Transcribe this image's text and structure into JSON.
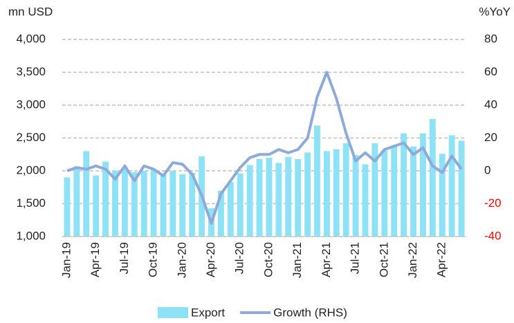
{
  "chart_data": {
    "type": "bar-line",
    "y_label": "mn USD",
    "y2_label": "%YoY",
    "categories": [
      "Jan-19",
      null,
      null,
      "Apr-19",
      null,
      null,
      "Jul-19",
      null,
      null,
      "Oct-19",
      null,
      null,
      "Jan-20",
      null,
      null,
      "Apr-20",
      null,
      null,
      "Jul-20",
      null,
      null,
      "Oct-20",
      null,
      null,
      "Jan-21",
      null,
      null,
      "Apr-21",
      null,
      null,
      "Jul-21",
      null,
      null,
      "Oct-21",
      null,
      null,
      "Jan-22",
      null,
      null,
      "Apr-22",
      null,
      null
    ],
    "series": [
      {
        "name": "Export",
        "type": "bar",
        "color": "#8de3f5",
        "axis": "y",
        "values": [
          1900,
          2070,
          2300,
          1930,
          2140,
          2000,
          2050,
          1980,
          2000,
          2020,
          1960,
          2000,
          1950,
          1970,
          2220,
          1430,
          1700,
          1830,
          1960,
          2090,
          2180,
          2200,
          2120,
          2210,
          2180,
          2280,
          2690,
          2300,
          2330,
          2420,
          2240,
          2100,
          2420,
          2310,
          2380,
          2570,
          2370,
          2570,
          2790,
          2260,
          2540,
          2460
        ]
      },
      {
        "name": "Growth (RHS)",
        "type": "line",
        "color": "#8eaadb",
        "axis": "y2",
        "values": [
          0,
          2,
          1,
          3,
          1,
          -5,
          3,
          -6,
          3,
          1,
          -3,
          5,
          4,
          -2,
          -15,
          -32,
          -14,
          -6,
          2,
          8,
          10,
          10,
          13,
          11,
          13,
          20,
          45,
          60,
          44,
          23,
          6,
          11,
          6,
          13,
          15,
          17,
          10,
          14,
          3,
          -1,
          9,
          1
        ]
      }
    ],
    "ylim": [
      1000,
      4000
    ],
    "yticks": [
      {
        "value": 1000,
        "label": "1,000"
      },
      {
        "value": 1500,
        "label": "1,500"
      },
      {
        "value": 2000,
        "label": "2,000"
      },
      {
        "value": 2500,
        "label": "2,500"
      },
      {
        "value": 3000,
        "label": "3,000"
      },
      {
        "value": 3500,
        "label": "3,500"
      },
      {
        "value": 4000,
        "label": "4,000"
      }
    ],
    "y2lim": [
      -40,
      80
    ],
    "y2ticks": [
      -40,
      -20,
      0,
      20,
      40,
      60,
      80
    ],
    "negative_tick_color": "#ff0000",
    "grid": true,
    "legend": "bottom"
  }
}
